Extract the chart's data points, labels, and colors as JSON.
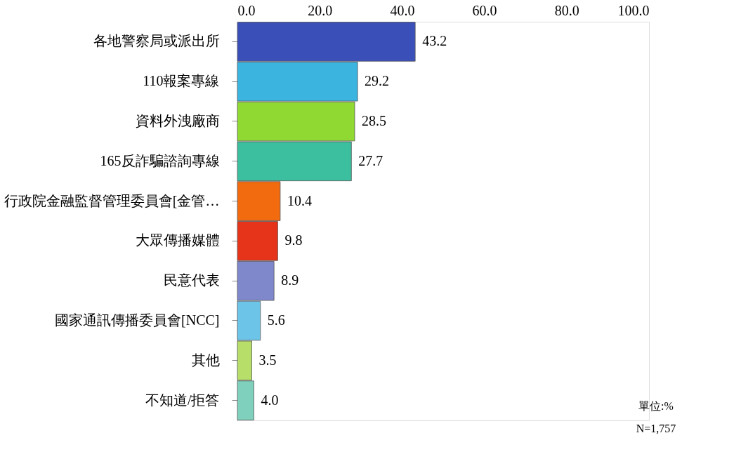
{
  "chart_data": {
    "type": "bar",
    "orientation": "horizontal",
    "categories": [
      "各地警察局或派出所",
      "110報案專線",
      "資料外洩廠商",
      "165反詐騙諮詢專線",
      "行政院金融監督管理委員會[金管…",
      "大眾傳播媒體",
      "民意代表",
      "國家通訊傳播委員會[NCC]",
      "其他",
      "不知道/拒答"
    ],
    "values": [
      43.2,
      29.2,
      28.5,
      27.7,
      10.4,
      9.8,
      8.9,
      5.6,
      3.5,
      4.0
    ],
    "value_labels": [
      "43.2",
      "29.2",
      "28.5",
      "27.7",
      "10.4",
      "9.8",
      "8.9",
      "5.6",
      "3.5",
      "4.0"
    ],
    "colors": [
      "#3a4fb8",
      "#3bb4e0",
      "#8fd932",
      "#3cbf9f",
      "#f26b0f",
      "#e5341a",
      "#8088cc",
      "#6cc4e8",
      "#b8de6a",
      "#7fd1bd"
    ],
    "xlim": [
      0,
      100
    ],
    "xticks": [
      {
        "value": 0,
        "label": "0.0"
      },
      {
        "value": 20,
        "label": "20.0"
      },
      {
        "value": 40,
        "label": "40.0"
      },
      {
        "value": 60,
        "label": "60.0"
      },
      {
        "value": 80,
        "label": "80.0"
      },
      {
        "value": 100,
        "label": "100.0"
      }
    ],
    "grid": false,
    "annotations": [
      "單位:%",
      "N=1,757"
    ]
  }
}
